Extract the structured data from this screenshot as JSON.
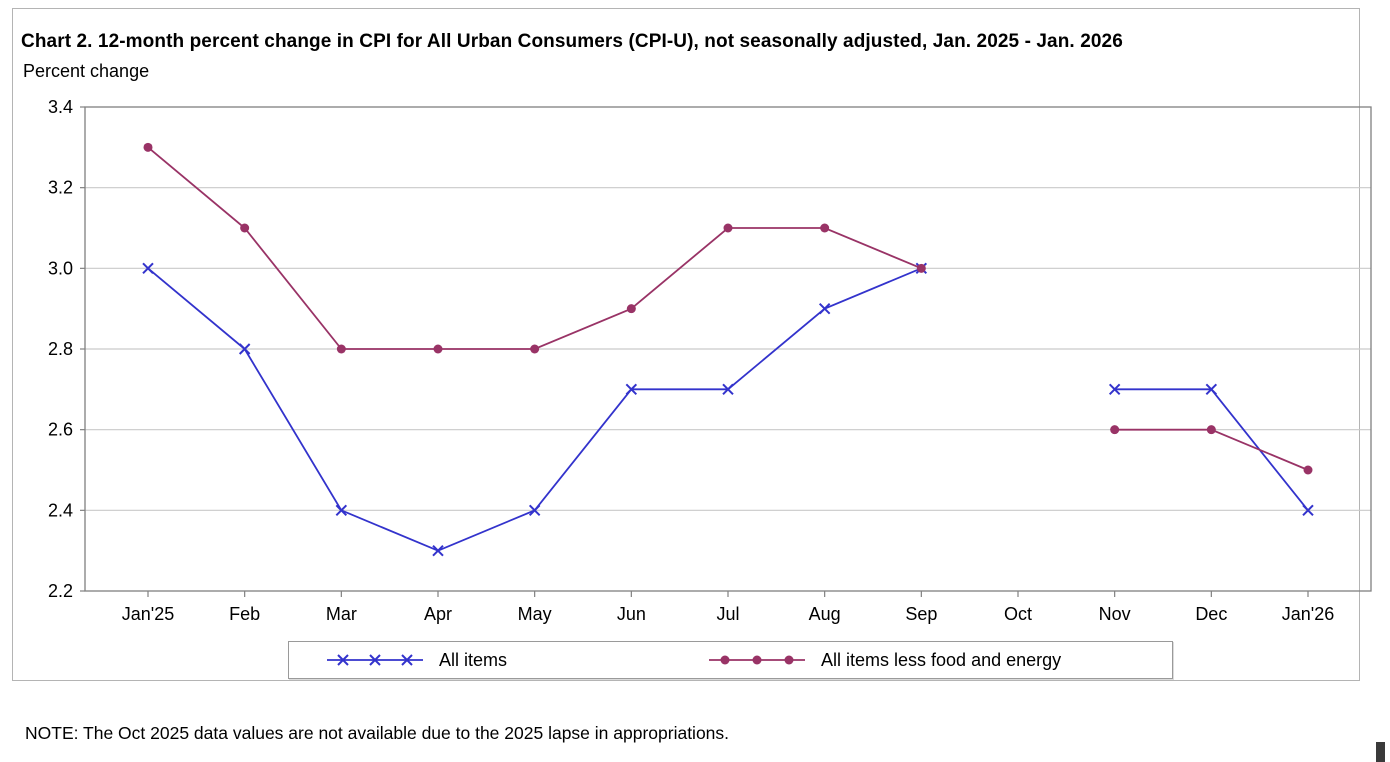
{
  "note": "NOTE: The Oct 2025 data values are not available due to the 2025 lapse in appropriations.",
  "chart_data": {
    "type": "line",
    "title": "Chart 2. 12-month percent change in CPI for All Urban Consumers (CPI-U), not seasonally adjusted, Jan. 2025 - Jan. 2026",
    "ylabel": "Percent change",
    "xlabel": "",
    "categories": [
      "Jan'25",
      "Feb",
      "Mar",
      "Apr",
      "May",
      "Jun",
      "Jul",
      "Aug",
      "Sep",
      "Oct",
      "Nov",
      "Dec",
      "Jan'26"
    ],
    "series": [
      {
        "name": "All items",
        "color": "#3333cc",
        "marker": "x",
        "values": [
          3.0,
          2.8,
          2.4,
          2.3,
          2.4,
          2.7,
          2.7,
          2.9,
          3.0,
          null,
          2.7,
          2.7,
          2.4
        ]
      },
      {
        "name": "All items less food and energy",
        "color": "#993366",
        "marker": "circle",
        "values": [
          3.3,
          3.1,
          2.8,
          2.8,
          2.8,
          2.9,
          3.1,
          3.1,
          3.0,
          null,
          2.6,
          2.6,
          2.5
        ]
      }
    ],
    "ylim": [
      2.2,
      3.4
    ],
    "yticks": [
      "3.4",
      "3.2",
      "3.0",
      "2.8",
      "2.6",
      "2.4",
      "2.2"
    ],
    "grid": "horizontal",
    "legend_position": "bottom",
    "axis_color": "#808080",
    "gridline_color": "#c9c9c9"
  }
}
